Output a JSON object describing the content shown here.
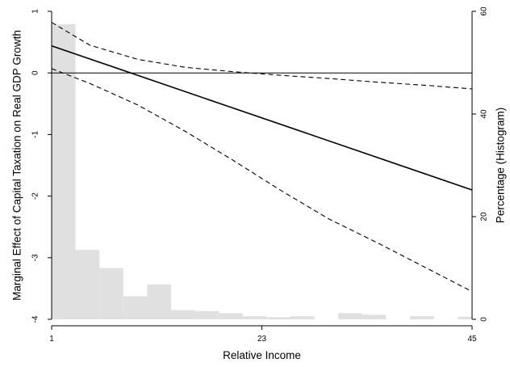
{
  "chart_data": {
    "type": "line",
    "title": "",
    "xlabel": "Relative Income",
    "ylabel": "Marginal Effect of Capital Taxation on Real GDP Growth",
    "y2label": "Percentage (Histogram)",
    "xlim": [
      1,
      45
    ],
    "ylim": [
      -4,
      1
    ],
    "y2lim": [
      0,
      60
    ],
    "x_ticks": [
      1,
      23,
      45
    ],
    "x_tick_labels": [
      "1",
      "23",
      "45"
    ],
    "y_ticks": [
      1,
      0,
      -1,
      -2,
      -3,
      -4
    ],
    "y_tick_labels": [
      "1",
      "0",
      "-1",
      "-2",
      "-3",
      "-4"
    ],
    "y2_ticks": [
      0,
      20,
      40,
      60
    ],
    "y2_tick_labels": [
      "0",
      "20",
      "40",
      "60"
    ],
    "grid": false,
    "reference_line_y": 0,
    "series": [
      {
        "style": "solid",
        "x": [
          1,
          45
        ],
        "y": [
          0.44,
          -1.9
        ]
      },
      {
        "style": "dashed",
        "x": [
          1,
          5,
          10,
          15,
          20,
          25,
          30,
          35,
          40,
          45
        ],
        "y": [
          0.82,
          0.45,
          0.22,
          0.09,
          0.02,
          -0.04,
          -0.09,
          -0.15,
          -0.2,
          -0.26
        ]
      },
      {
        "style": "dashed",
        "x": [
          1,
          5,
          10,
          15,
          20,
          25,
          30,
          35,
          40,
          45
        ],
        "y": [
          0.07,
          -0.17,
          -0.52,
          -0.95,
          -1.42,
          -1.91,
          -2.37,
          -2.75,
          -3.15,
          -3.55
        ]
      }
    ],
    "histogram": {
      "color": "#e0e0e0",
      "bins": [
        [
          1,
          3.5,
          57.5
        ],
        [
          3.5,
          6,
          13.5
        ],
        [
          6,
          8.5,
          10
        ],
        [
          8.5,
          11,
          4.5
        ],
        [
          11,
          13.5,
          6.8
        ],
        [
          13.5,
          16,
          1.8
        ],
        [
          16,
          18.5,
          1.6
        ],
        [
          18.5,
          21,
          1.2
        ],
        [
          21,
          23.5,
          0.6
        ],
        [
          23.5,
          26,
          0.4
        ],
        [
          26,
          28.5,
          0.6
        ],
        [
          31,
          33.5,
          1.2
        ],
        [
          33.5,
          36,
          0.9
        ],
        [
          38.5,
          41,
          0.6
        ],
        [
          43.5,
          46,
          0.5
        ]
      ]
    }
  }
}
